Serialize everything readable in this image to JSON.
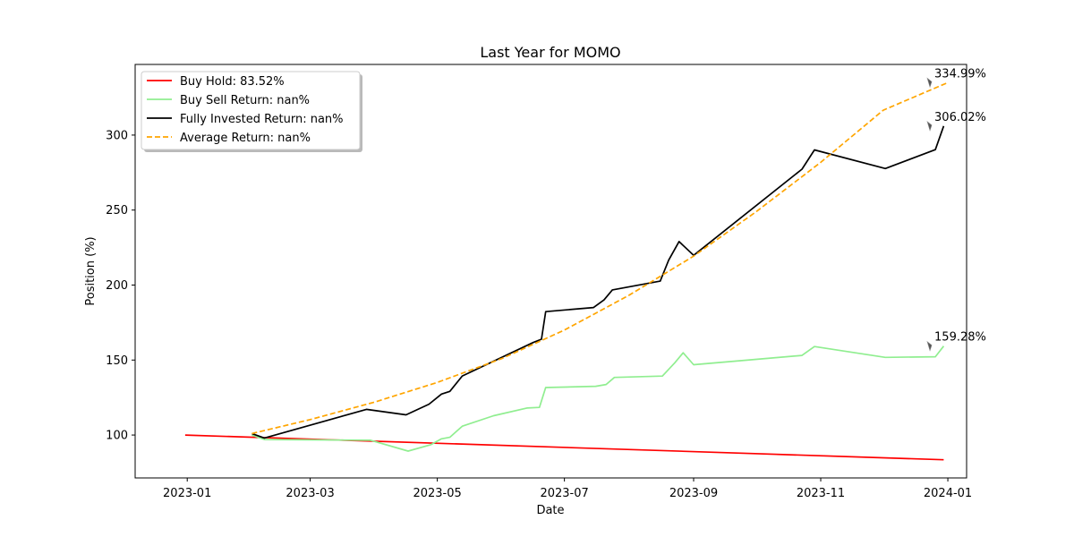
{
  "chart_data": {
    "type": "line",
    "title": "Last Year for MOMO",
    "xlabel": "Date",
    "ylabel": "Position (%)",
    "xlim": [
      "2022-12-07",
      "2024-01-10"
    ],
    "ylim": [
      71.4,
      347.1
    ],
    "x_ticks": [
      "2023-01",
      "2023-03",
      "2023-05",
      "2023-07",
      "2023-09",
      "2023-11",
      "2024-01"
    ],
    "y_ticks": [
      100,
      150,
      200,
      250,
      300
    ],
    "grid": false,
    "legend_position": "top-left",
    "series": [
      {
        "name": "Buy Hold: 83.52%",
        "color": "#ff0000",
        "dash": "solid",
        "points": [
          [
            "2022-12-31",
            100.0
          ],
          [
            "2023-12-30",
            83.52
          ]
        ]
      },
      {
        "name": "Buy Sell Return: nan%",
        "color": "#90ee90",
        "dash": "solid",
        "points": [
          [
            "2023-02-01",
            100.0
          ],
          [
            "2023-02-07",
            97.0
          ],
          [
            "2023-03-30",
            96.5
          ],
          [
            "2023-04-17",
            89.3
          ],
          [
            "2023-04-28",
            93.6
          ],
          [
            "2023-05-03",
            97.5
          ],
          [
            "2023-05-07",
            98.5
          ],
          [
            "2023-05-13",
            105.9
          ],
          [
            "2023-05-28",
            112.9
          ],
          [
            "2023-06-13",
            118.0
          ],
          [
            "2023-06-19",
            118.4
          ],
          [
            "2023-06-22",
            131.7
          ],
          [
            "2023-07-16",
            132.5
          ],
          [
            "2023-07-21",
            133.7
          ],
          [
            "2023-07-25",
            138.4
          ],
          [
            "2023-08-17",
            139.3
          ],
          [
            "2023-08-23",
            148.2
          ],
          [
            "2023-08-27",
            154.8
          ],
          [
            "2023-09-01",
            146.9
          ],
          [
            "2023-10-23",
            153.1
          ],
          [
            "2023-10-29",
            159.0
          ],
          [
            "2023-12-02",
            151.8
          ],
          [
            "2023-12-26",
            152.2
          ],
          [
            "2023-12-30",
            159.28
          ]
        ]
      },
      {
        "name": "Fully Invested Return: nan%",
        "color": "#000000",
        "dash": "solid",
        "points": [
          [
            "2023-02-01",
            101.0
          ],
          [
            "2023-02-07",
            98.0
          ],
          [
            "2023-03-28",
            117.1
          ],
          [
            "2023-04-16",
            113.5
          ],
          [
            "2023-04-27",
            120.6
          ],
          [
            "2023-05-03",
            127.3
          ],
          [
            "2023-05-07",
            129.1
          ],
          [
            "2023-05-13",
            139.4
          ],
          [
            "2023-06-16",
            161.7
          ],
          [
            "2023-06-20",
            163.9
          ],
          [
            "2023-06-22",
            182.3
          ],
          [
            "2023-07-15",
            185.0
          ],
          [
            "2023-07-20",
            190.1
          ],
          [
            "2023-07-24",
            196.8
          ],
          [
            "2023-08-16",
            202.6
          ],
          [
            "2023-08-20",
            216.6
          ],
          [
            "2023-08-25",
            229.0
          ],
          [
            "2023-09-01",
            219.8
          ],
          [
            "2023-10-23",
            277.3
          ],
          [
            "2023-10-29",
            290.1
          ],
          [
            "2023-12-02",
            277.7
          ],
          [
            "2023-12-26",
            290.3
          ],
          [
            "2023-12-30",
            306.02
          ]
        ]
      },
      {
        "name": "Average Return: nan%",
        "color": "#ffa500",
        "dash": "dashed",
        "points": [
          [
            "2023-02-01",
            101.0
          ],
          [
            "2023-03-01",
            110.3
          ],
          [
            "2023-04-01",
            122.0
          ],
          [
            "2023-05-01",
            135.1
          ],
          [
            "2023-06-01",
            151.0
          ],
          [
            "2023-07-01",
            170.0
          ],
          [
            "2023-08-01",
            193.2
          ],
          [
            "2023-09-01",
            219.3
          ],
          [
            "2023-10-01",
            248.9
          ],
          [
            "2023-11-01",
            281.8
          ],
          [
            "2023-12-01",
            316.6
          ],
          [
            "2024-01-01",
            334.99
          ]
        ]
      }
    ],
    "annotations": [
      {
        "text": "334.99%",
        "x": "2024-01-01",
        "y": 334.99,
        "color": "#ffa500"
      },
      {
        "text": "306.02%",
        "x": "2024-01-01",
        "y": 306.02,
        "color": "#000000"
      },
      {
        "text": "159.28%",
        "x": "2024-01-01",
        "y": 159.28,
        "color": "#90ee90"
      }
    ]
  }
}
